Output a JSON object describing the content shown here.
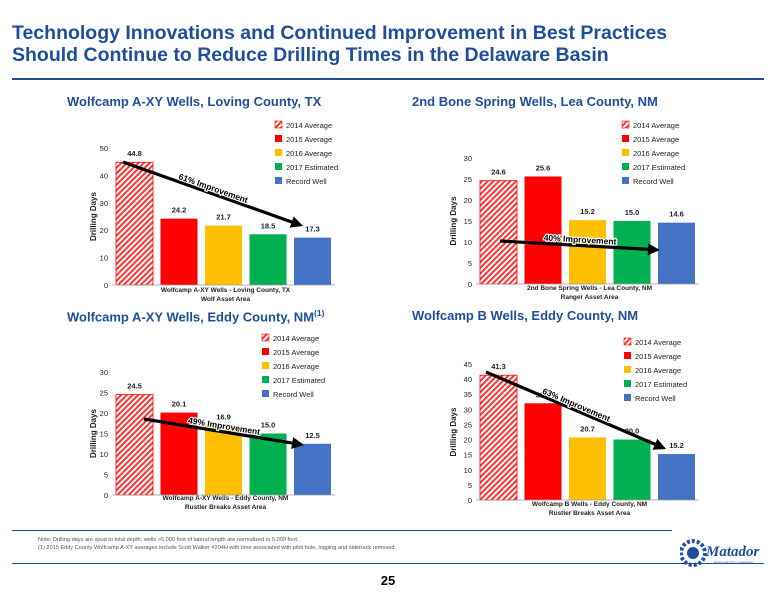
{
  "page": {
    "title_line1": "Technology Innovations and Continued Improvement in Best Practices",
    "title_line2": "Should Continue to Reduce Drilling Times in the Delaware Basin",
    "note_1": "Note: Drilling days are spud to total depth; wells >5,000 foot of lateral length are normalized to 5,000 foot.",
    "note_2": "(1) 2015 Eddy County Wolfcamp A-XY averages include Scott Walker #204H with time associated with pilot hole, logging and sidetrack removed.",
    "page_number": "25",
    "logo_text": "Matador",
    "logo_subtext": "RESOURCES COMPANY"
  },
  "colors": {
    "title_blue": "#1f4e9c",
    "red": "#ff0000",
    "yellow": "#ffc000",
    "green": "#00b050",
    "blue": "#4472c4",
    "hatch_red": "#ff3333"
  },
  "panel_titles": {
    "p1": "Wolfcamp A-XY Wells, Loving County, TX",
    "p2": "2nd Bone Spring Wells, Lea County, NM",
    "p3": "Wolfcamp A-XY Wells, Eddy County, NM",
    "p3_sup": "(1)",
    "p4": "Wolfcamp B Wells, Eddy County, NM"
  },
  "chart_data": [
    {
      "type": "bar",
      "title": "Wolfcamp A-XY Wells, Loving County, TX",
      "ylabel": "Drilling Days",
      "xlabel": [
        "Wolfcamp A-XY Wells - Loving County, TX",
        "Wolf Asset Area"
      ],
      "ylim": [
        0,
        50
      ],
      "yticks": [
        0,
        10,
        20,
        30,
        40,
        50
      ],
      "series": [
        {
          "name": "2014 Average",
          "value": 44.8,
          "label": "44.8",
          "color": "#ff0000",
          "hatched": true
        },
        {
          "name": "2015 Average",
          "value": 24.2,
          "label": "24.2",
          "color": "#ff0000"
        },
        {
          "name": "2016 Average",
          "value": 21.7,
          "label": "21.7",
          "color": "#ffc000"
        },
        {
          "name": "2017 Estimated",
          "value": 18.5,
          "label": "18.5",
          "color": "#00b050"
        },
        {
          "name": "Record Well",
          "value": 17.3,
          "label": "17.3",
          "color": "#4472c4"
        }
      ],
      "annotation": "61% Improvement",
      "grid": false,
      "legend_position": "top-right"
    },
    {
      "type": "bar",
      "title": "2nd Bone Spring Wells, Lea County, NM",
      "ylabel": "Drilling Days",
      "xlabel": [
        "2nd Bone Spring Wells - Lea County, NM",
        "Ranger Asset Area"
      ],
      "ylim": [
        0,
        30
      ],
      "yticks": [
        0,
        5,
        10,
        15,
        20,
        25,
        30
      ],
      "series": [
        {
          "name": "2014 Average",
          "value": 24.6,
          "label": "24.6",
          "color": "#ff0000",
          "hatched": true
        },
        {
          "name": "2015 Average",
          "value": 25.6,
          "label": "25.6",
          "color": "#ff0000"
        },
        {
          "name": "2016 Average",
          "value": 15.2,
          "label": "15.2",
          "color": "#ffc000"
        },
        {
          "name": "2017 Estimated",
          "value": 15.0,
          "label": "15.0",
          "color": "#00b050"
        },
        {
          "name": "Record Well",
          "value": 14.6,
          "label": "14.6",
          "color": "#4472c4"
        }
      ],
      "annotation": "40% Improvement",
      "grid": false,
      "legend_position": "top-right"
    },
    {
      "type": "bar",
      "title": "Wolfcamp A-XY Wells, Eddy County, NM",
      "ylabel": "Drilling Days",
      "xlabel": [
        "Wolfcamp A-XY Wells - Eddy County, NM",
        "Rustler Breaks Asset Area"
      ],
      "ylim": [
        0,
        30
      ],
      "yticks": [
        0,
        5,
        10,
        15,
        20,
        25,
        30
      ],
      "series": [
        {
          "name": "2014 Average",
          "value": 24.5,
          "label": "24.5",
          "color": "#ff0000",
          "hatched": true
        },
        {
          "name": "2015 Average",
          "value": 20.1,
          "label": "20.1",
          "color": "#ff0000"
        },
        {
          "name": "2016 Average",
          "value": 16.9,
          "label": "16.9",
          "color": "#ffc000"
        },
        {
          "name": "2017 Estimated",
          "value": 15.0,
          "label": "15.0",
          "color": "#00b050"
        },
        {
          "name": "Record Well",
          "value": 12.5,
          "label": "12.5",
          "color": "#4472c4"
        }
      ],
      "annotation": "49% Improvement",
      "grid": false,
      "legend_position": "top-right"
    },
    {
      "type": "bar",
      "title": "Wolfcamp B Wells, Eddy County, NM",
      "ylabel": "Drilling Days",
      "xlabel": [
        "Wolfcamp B Wells - Eddy County, NM",
        "Rustler Breaks Asset Area"
      ],
      "ylim": [
        0,
        45
      ],
      "yticks": [
        0,
        5,
        10,
        15,
        20,
        25,
        30,
        35,
        40,
        45
      ],
      "series": [
        {
          "name": "2014 Average",
          "value": 41.3,
          "label": "41.3",
          "color": "#ff0000",
          "hatched": true
        },
        {
          "name": "2015 Average",
          "value": 32.0,
          "label": "32.0",
          "color": "#ff0000"
        },
        {
          "name": "2016 Average",
          "value": 20.7,
          "label": "20.7",
          "color": "#ffc000"
        },
        {
          "name": "2017 Estimated",
          "value": 20.0,
          "label": "20.0",
          "color": "#00b050"
        },
        {
          "name": "Record Well",
          "value": 15.2,
          "label": "15.2",
          "color": "#4472c4"
        }
      ],
      "annotation": "63% Improvement",
      "grid": false,
      "legend_position": "top-right"
    }
  ]
}
